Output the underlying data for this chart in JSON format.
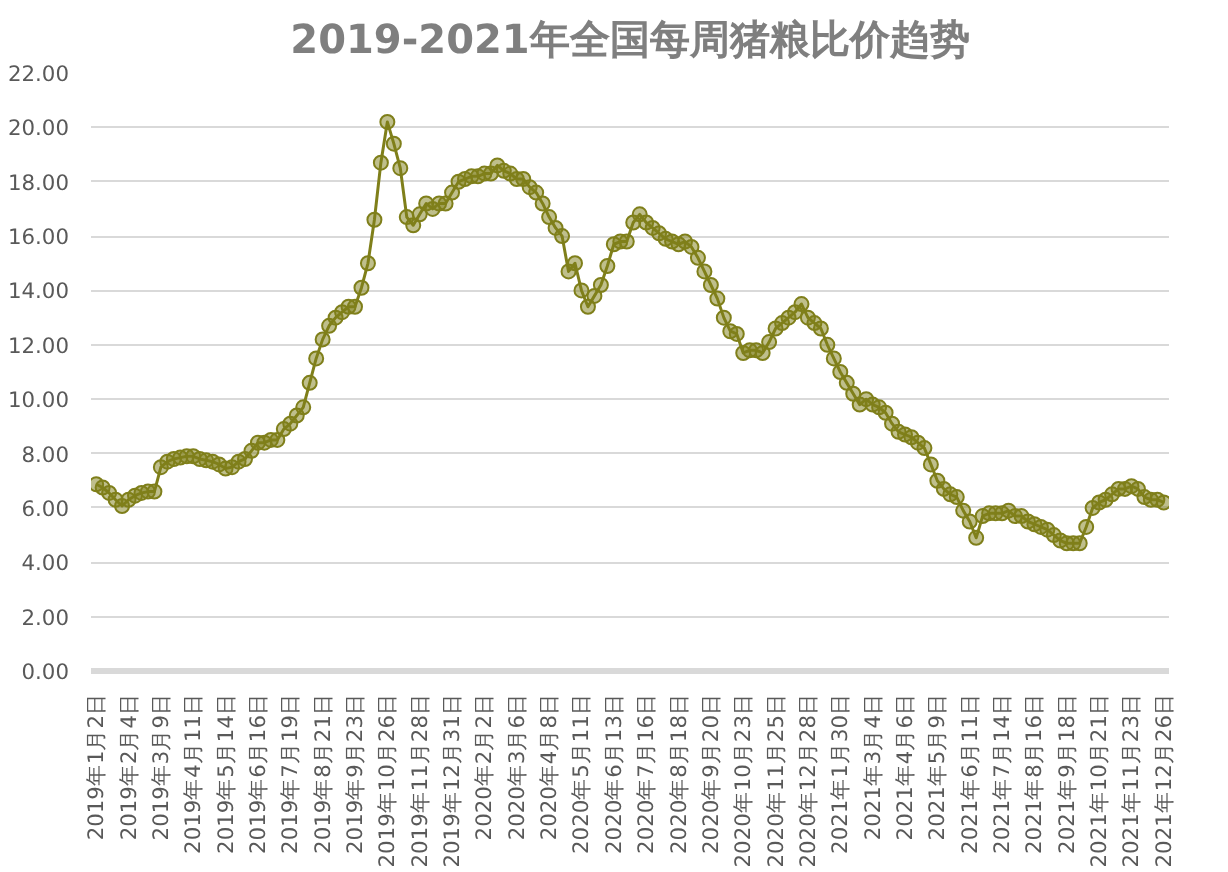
{
  "chart_data": {
    "type": "line",
    "title": "2019-2021年全国每周猪粮比价趋势",
    "categories": [
      "2019年1月2日",
      null,
      null,
      null,
      null,
      "2019年2月4日",
      null,
      null,
      null,
      null,
      "2019年3月9日",
      null,
      null,
      null,
      null,
      "2019年4月11日",
      null,
      null,
      null,
      null,
      "2019年5月14日",
      null,
      null,
      null,
      null,
      "2019年6月16日",
      null,
      null,
      null,
      null,
      "2019年7月19日",
      null,
      null,
      null,
      null,
      "2019年8月21日",
      null,
      null,
      null,
      null,
      "2019年9月23日",
      null,
      null,
      null,
      null,
      "2019年10月26日",
      null,
      null,
      null,
      null,
      "2019年11月28日",
      null,
      null,
      null,
      null,
      "2019年12月31日",
      null,
      null,
      null,
      null,
      "2020年2月2日",
      null,
      null,
      null,
      null,
      "2020年3月6日",
      null,
      null,
      null,
      null,
      "2020年4月8日",
      null,
      null,
      null,
      null,
      "2020年5月11日",
      null,
      null,
      null,
      null,
      "2020年6月13日",
      null,
      null,
      null,
      null,
      "2020年7月16日",
      null,
      null,
      null,
      null,
      "2020年8月18日",
      null,
      null,
      null,
      null,
      "2020年9月20日",
      null,
      null,
      null,
      null,
      "2020年10月23日",
      null,
      null,
      null,
      null,
      "2020年11月25日",
      null,
      null,
      null,
      null,
      "2020年12月28日",
      null,
      null,
      null,
      null,
      "2021年1月30日",
      null,
      null,
      null,
      null,
      "2021年3月4日",
      null,
      null,
      null,
      null,
      "2021年4月6日",
      null,
      null,
      null,
      null,
      "2021年5月9日",
      null,
      null,
      null,
      null,
      "2021年6月11日",
      null,
      null,
      null,
      null,
      "2021年7月14日",
      null,
      null,
      null,
      null,
      "2021年8月16日",
      null,
      null,
      null,
      null,
      "2021年9月18日",
      null,
      null,
      null,
      null,
      "2021年10月21日",
      null,
      null,
      null,
      null,
      "2021年11月23日",
      null,
      null,
      null,
      null,
      "2021年12月26日"
    ],
    "series": [
      {
        "color": "#7f7f1a",
        "values": [
          6.87,
          6.75,
          6.55,
          6.3,
          6.07,
          6.3,
          6.45,
          6.55,
          6.6,
          6.6,
          7.5,
          7.7,
          7.8,
          7.85,
          7.9,
          7.9,
          7.8,
          7.75,
          7.7,
          7.6,
          7.45,
          7.5,
          7.7,
          7.8,
          8.1,
          8.4,
          8.4,
          8.5,
          8.5,
          8.9,
          9.1,
          9.4,
          9.7,
          10.6,
          11.5,
          12.2,
          12.7,
          13.0,
          13.2,
          13.4,
          13.4,
          14.1,
          15.0,
          16.6,
          18.7,
          20.2,
          19.4,
          18.5,
          16.7,
          16.4,
          16.8,
          17.2,
          17.0,
          17.2,
          17.2,
          17.6,
          18.0,
          18.1,
          18.2,
          18.2,
          18.3,
          18.3,
          18.6,
          18.4,
          18.3,
          18.1,
          18.1,
          17.8,
          17.6,
          17.2,
          16.7,
          16.3,
          16.0,
          14.7,
          15.0,
          14.0,
          13.4,
          13.8,
          14.2,
          14.9,
          15.7,
          15.8,
          15.8,
          16.5,
          16.8,
          16.5,
          16.3,
          16.1,
          15.9,
          15.8,
          15.7,
          15.8,
          15.6,
          15.2,
          14.7,
          14.2,
          13.7,
          13.0,
          12.5,
          12.4,
          11.7,
          11.8,
          11.8,
          11.7,
          12.1,
          12.6,
          12.8,
          13.0,
          13.2,
          13.5,
          13.0,
          12.8,
          12.6,
          12.0,
          11.5,
          11.0,
          10.6,
          10.2,
          9.8,
          10.0,
          9.8,
          9.7,
          9.5,
          9.1,
          8.8,
          8.7,
          8.6,
          8.4,
          8.2,
          7.6,
          7.0,
          6.7,
          6.5,
          6.4,
          5.9,
          5.5,
          4.9,
          5.7,
          5.8,
          5.8,
          5.8,
          5.9,
          5.7,
          5.7,
          5.5,
          5.4,
          5.3,
          5.2,
          5.0,
          4.8,
          4.7,
          4.7,
          4.7,
          5.3,
          6.0,
          6.2,
          6.3,
          6.5,
          6.7,
          6.7,
          6.8,
          6.7,
          6.4,
          6.3,
          6.3,
          6.2
        ]
      }
    ],
    "ylim": [
      0,
      22
    ],
    "yticks": [
      {
        "value": 0,
        "label": "0.00"
      },
      {
        "value": 2,
        "label": "2.00"
      },
      {
        "value": 4,
        "label": "4.00"
      },
      {
        "value": 6,
        "label": "6.00"
      },
      {
        "value": 8,
        "label": "8.00"
      },
      {
        "value": 10,
        "label": "10.00"
      },
      {
        "value": 12,
        "label": "12.00"
      },
      {
        "value": 14,
        "label": "14.00"
      },
      {
        "value": 16,
        "label": "16.00"
      },
      {
        "value": 18,
        "label": "18.00"
      },
      {
        "value": 20,
        "label": "20.00"
      },
      {
        "value": 22,
        "label": "22.00"
      }
    ],
    "grid": "y",
    "marker": "circle",
    "line_style": "solid"
  }
}
